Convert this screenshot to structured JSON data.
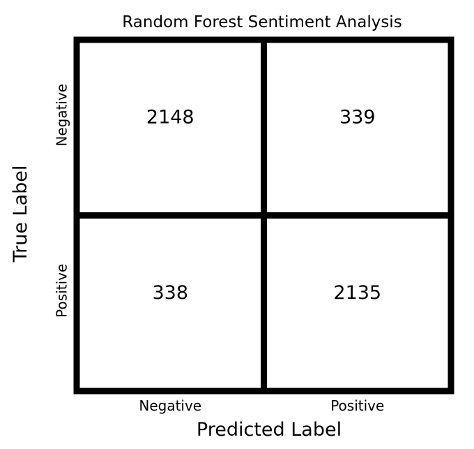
{
  "chart_data": {
    "type": "heatmap",
    "title": "Random Forest Sentiment Analysis",
    "xlabel": "Predicted Label",
    "ylabel": "True Label",
    "x_categories": [
      "Negative",
      "Positive"
    ],
    "y_categories": [
      "Negative",
      "Positive"
    ],
    "matrix": [
      [
        2148,
        339
      ],
      [
        338,
        2135
      ]
    ],
    "colors": {
      "grid": "#000000",
      "cell": "#ffffff",
      "text": "#000000"
    }
  }
}
